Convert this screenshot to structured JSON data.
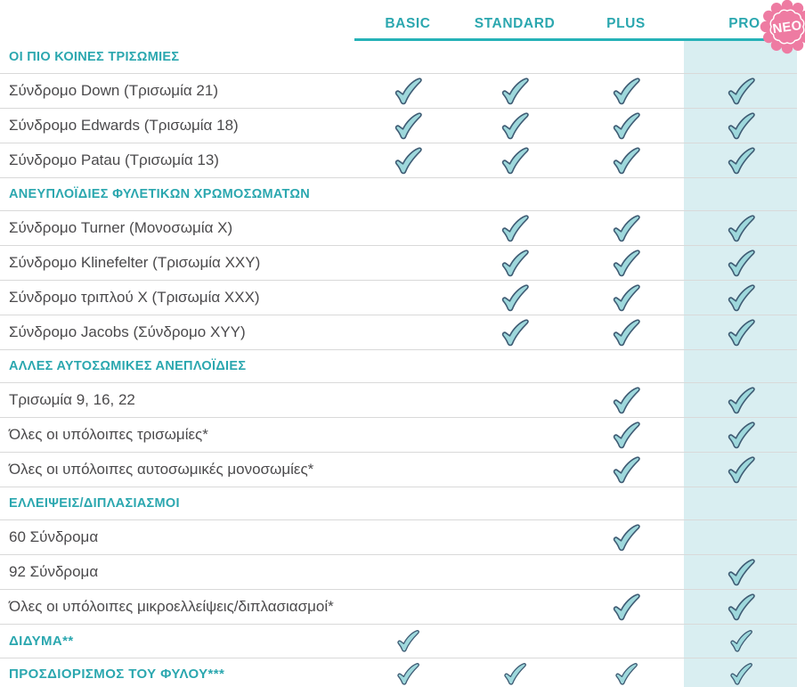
{
  "columns": [
    {
      "label": "BASIC"
    },
    {
      "label": "STANDARD"
    },
    {
      "label": "PLUS"
    },
    {
      "label": "PRO"
    }
  ],
  "badge": {
    "label": "NEO"
  },
  "sections": [
    {
      "header": "ΟΙ ΠΙΟ ΚΟΙΝΕΣ ΤΡΙΣΩΜΙΕΣ",
      "rows": [
        {
          "label": "Σύνδρομο Down (Τρισωμία 21)",
          "checks": [
            true,
            true,
            true,
            true
          ]
        },
        {
          "label": "Σύνδρομο Edwards (Τρισωμία 18)",
          "checks": [
            true,
            true,
            true,
            true
          ]
        },
        {
          "label": "Σύνδρομο Patau (Τρισωμία 13)",
          "checks": [
            true,
            true,
            true,
            true
          ]
        }
      ]
    },
    {
      "header": "ΑΝΕΥΠΛΟΪΔΙΕΣ ΦΥΛΕΤΙΚΩΝ ΧΡΩΜΟΣΩΜΑΤΩΝ",
      "rows": [
        {
          "label": "Σύνδρομο Turner (Μονοσωμία X)",
          "checks": [
            false,
            true,
            true,
            true
          ]
        },
        {
          "label": "Σύνδρομο Klinefelter (Τρισωμία XXY)",
          "checks": [
            false,
            true,
            true,
            true
          ]
        },
        {
          "label": "Σύνδρομο τριπλού X (Τρισωμία XXX)",
          "checks": [
            false,
            true,
            true,
            true
          ]
        },
        {
          "label": "Σύνδρομο Jacobs (Σύνδρομο XYY)",
          "checks": [
            false,
            true,
            true,
            true
          ]
        }
      ]
    },
    {
      "header": "ΑΛΛΕΣ ΑΥΤΟΣΩΜΙΚΕΣ ΑΝΕΠΛΟΪΔΙΕΣ",
      "rows": [
        {
          "label": "Τρισωμία 9, 16, 22",
          "checks": [
            false,
            false,
            true,
            true
          ]
        },
        {
          "label": "Όλες οι υπόλοιπες τρισωμίες*",
          "checks": [
            false,
            false,
            true,
            true
          ]
        },
        {
          "label": "Όλες οι υπόλοιπες αυτοσωμικές μονοσωμίες*",
          "checks": [
            false,
            false,
            true,
            true
          ]
        }
      ]
    },
    {
      "header": "ΕΛΛΕΙΨΕΙΣ/ΔΙΠΛΑΣΙΑΣΜΟΙ",
      "rows": [
        {
          "label": "60 Σύνδρομα",
          "checks": [
            false,
            false,
            true,
            false
          ]
        },
        {
          "label": "92 Σύνδρομα",
          "checks": [
            false,
            false,
            false,
            true
          ]
        },
        {
          "label": "Όλες οι υπόλοιπες μικροελλείψεις/διπλασιασμοί*",
          "checks": [
            false,
            false,
            true,
            true
          ]
        }
      ]
    }
  ],
  "footer_rows": [
    {
      "label": "ΔΙΔΥΜΑ**",
      "checks": [
        true,
        false,
        false,
        true
      ]
    },
    {
      "label": "ΠΡΟΣΔΙΟΡΙΣΜΟΣ ΤΟΥ ΦΥΛΟΥ***",
      "checks": [
        true,
        true,
        true,
        true
      ]
    }
  ],
  "colors": {
    "teal_text": "#2ba7af",
    "teal_line": "#26b2b8",
    "pro_column_bg": "#d9eef1",
    "row_text": "#4b4a4c",
    "separator": "#d9d9d9",
    "check_fill": "#9ed8dc",
    "check_stroke": "#3f5c74",
    "badge_pink": "#ee7ba2",
    "badge_text_color": "#ffffff"
  }
}
